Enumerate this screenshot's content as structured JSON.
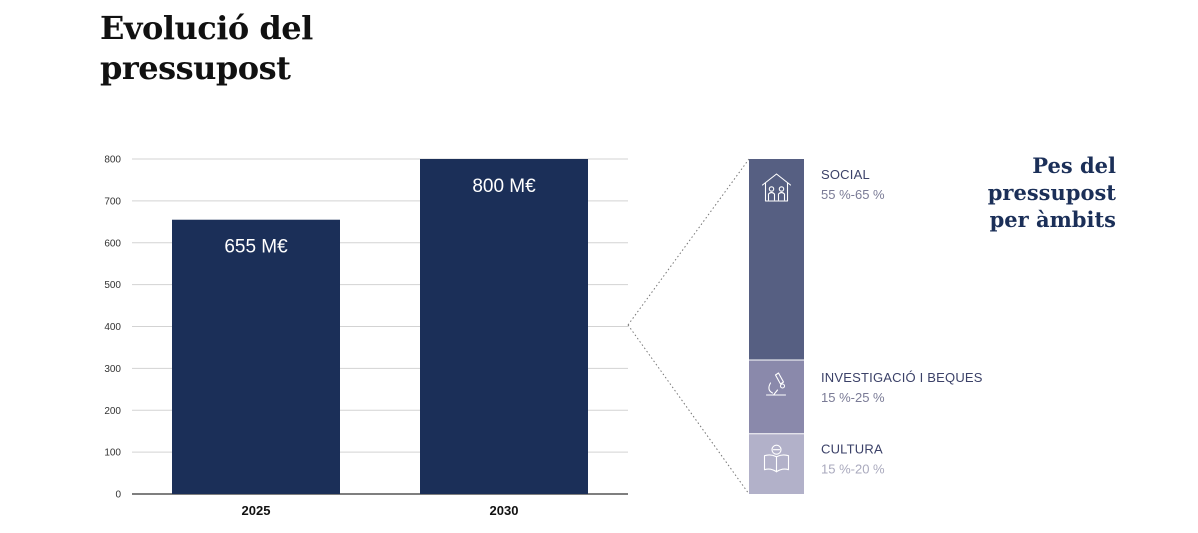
{
  "page": {
    "title": "Evolució del pressupost",
    "side_title": "Pes del pressupost per àmbits"
  },
  "colors": {
    "bar": "#1b2f58",
    "grid": "#d3d3d3",
    "axis": "#333333",
    "social": "#565f82",
    "investigacio": "#8a89ab",
    "cultura": "#b2b1c9"
  },
  "chart_data": [
    {
      "type": "bar",
      "title": "Evolució del pressupost",
      "categories": [
        "2025",
        "2030"
      ],
      "values": [
        655,
        800
      ],
      "value_labels": [
        "655 M€",
        "800 M€"
      ],
      "ylim": [
        0,
        800
      ],
      "yticks": [
        0,
        100,
        200,
        300,
        400,
        500,
        600,
        700,
        800
      ],
      "xlabel": "",
      "ylabel": "",
      "grid": true
    },
    {
      "type": "stacked-bar",
      "title": "Pes del pressupost per àmbits",
      "segments": [
        {
          "name": "SOCIAL",
          "range": "55 %-65 %",
          "value": 60,
          "icon": "family-house-icon"
        },
        {
          "name": "INVESTIGACIÓ I BEQUES",
          "range": "15 %-25 %",
          "value": 22,
          "icon": "microscope-icon"
        },
        {
          "name": "CULTURA",
          "range": "15 %-20 %",
          "value": 18,
          "icon": "book-icon"
        }
      ]
    }
  ]
}
